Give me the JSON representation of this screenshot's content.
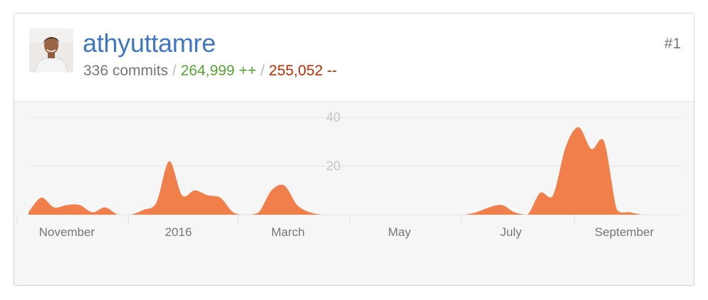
{
  "contributor": {
    "username": "athyuttamre",
    "rank": "#1",
    "commits": "336 commits",
    "sep": "/",
    "additions": "264,999 ++",
    "deletions": "255,052 --"
  },
  "colors": {
    "username": "#4078c0",
    "additions": "#55a532",
    "deletions": "#bd2c00",
    "area": "#f17f4c"
  },
  "icons": {
    "avatar": "user-avatar-photo"
  },
  "chart_data": {
    "type": "area",
    "title": "",
    "xlabel": "",
    "ylabel": "",
    "ylim": [
      0,
      44
    ],
    "yticks": [
      20,
      40
    ],
    "x_range": [
      "2015-10-11",
      "2016-10-02"
    ],
    "x_tick_labels": [
      {
        "label": "November",
        "date": "2015-11-01"
      },
      {
        "label": "2016",
        "date": "2016-01-01"
      },
      {
        "label": "March",
        "date": "2016-03-01"
      },
      {
        "label": "May",
        "date": "2016-05-01"
      },
      {
        "label": "July",
        "date": "2016-07-01"
      },
      {
        "label": "September",
        "date": "2016-09-01"
      }
    ],
    "grid": true,
    "series": [
      {
        "weeks": [
          "2015-10-11",
          "2015-10-18",
          "2015-10-25",
          "2015-11-01",
          "2015-11-08",
          "2015-11-15",
          "2015-11-22",
          "2015-11-29",
          "2015-12-06",
          "2015-12-13",
          "2015-12-20",
          "2015-12-27",
          "2016-01-03",
          "2016-01-10",
          "2016-01-17",
          "2016-01-24",
          "2016-01-31",
          "2016-02-07",
          "2016-02-14",
          "2016-02-21",
          "2016-02-28",
          "2016-03-06",
          "2016-03-13",
          "2016-03-20",
          "2016-03-27",
          "2016-04-03",
          "2016-04-10",
          "2016-04-17",
          "2016-04-24",
          "2016-05-01",
          "2016-05-08",
          "2016-05-15",
          "2016-05-22",
          "2016-05-29",
          "2016-06-05",
          "2016-06-12",
          "2016-06-19",
          "2016-06-26",
          "2016-07-03",
          "2016-07-10",
          "2016-07-17",
          "2016-07-24",
          "2016-07-31",
          "2016-08-07",
          "2016-08-14",
          "2016-08-21",
          "2016-08-28",
          "2016-09-04",
          "2016-09-11",
          "2016-09-18",
          "2016-09-25",
          "2016-10-02"
        ],
        "values": [
          1,
          7,
          3,
          4,
          4,
          1,
          3,
          0,
          0,
          2,
          5,
          22,
          8,
          10,
          8,
          7,
          1,
          0,
          1,
          10,
          12,
          4,
          1,
          0,
          0,
          0,
          0,
          0,
          0,
          0,
          0,
          0,
          0,
          0,
          0,
          1,
          3,
          4,
          1,
          0,
          9,
          8,
          28,
          36,
          27,
          30,
          2,
          1,
          0,
          0,
          0,
          0
        ]
      }
    ]
  }
}
